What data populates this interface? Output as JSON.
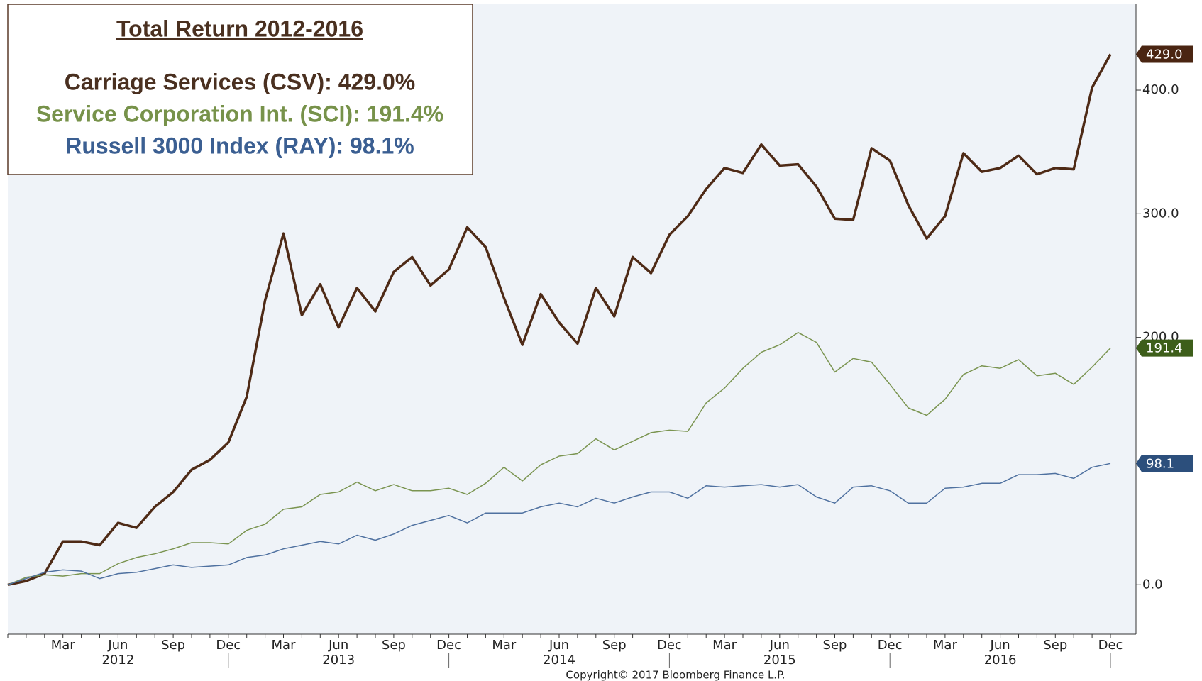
{
  "chart_data": {
    "type": "line",
    "title": "Total Return 2012-2016",
    "categories": [
      null,
      null,
      null,
      "Mar",
      null,
      null,
      "Jun",
      null,
      null,
      "Sep",
      null,
      null,
      "Dec",
      null,
      null,
      "Mar",
      null,
      null,
      "Jun",
      null,
      null,
      "Sep",
      null,
      null,
      "Dec",
      null,
      null,
      "Mar",
      null,
      null,
      "Jun",
      null,
      null,
      "Sep",
      null,
      null,
      "Dec",
      null,
      null,
      "Mar",
      null,
      null,
      "Jun",
      null,
      null,
      "Sep",
      null,
      null,
      "Dec",
      null,
      null,
      "Mar",
      null,
      null,
      "Jun",
      null,
      null,
      "Sep",
      null,
      null,
      "Dec"
    ],
    "years": [
      "2012",
      "2013",
      "2014",
      "2015",
      "2016"
    ],
    "series": [
      {
        "name": "Carriage Services (CSV): 429.0%",
        "color": "#4e2a16",
        "tag_color": "#4a2512",
        "values": [
          0,
          3,
          9,
          35,
          35,
          32,
          50,
          46,
          63,
          75,
          93,
          101,
          115,
          152,
          230,
          284,
          218,
          243,
          208,
          240,
          221,
          253,
          265,
          242,
          255,
          289,
          273,
          232,
          194,
          235,
          212,
          195,
          240,
          217,
          265,
          252,
          283,
          298,
          320,
          337,
          333,
          356,
          339,
          340,
          322,
          296,
          295,
          353,
          343,
          307,
          280,
          298,
          349,
          334,
          337,
          347,
          332,
          337,
          336,
          402,
          429
        ],
        "value_label": "429.0"
      },
      {
        "name": "Service Corporation Int. (SCI): 191.4%",
        "color": "#7a9450",
        "tag_color": "#3d5e1a",
        "values": [
          0,
          6,
          8,
          7,
          9,
          9,
          17,
          22,
          25,
          29,
          34,
          34,
          33,
          44,
          49,
          61,
          63,
          73,
          75,
          83,
          76,
          81,
          76,
          76,
          78,
          73,
          82,
          95,
          84,
          97,
          104,
          106,
          118,
          109,
          116,
          123,
          125,
          124,
          147,
          159,
          175,
          188,
          194,
          204,
          196,
          172,
          183,
          180,
          162,
          143,
          137,
          150,
          170,
          177,
          175,
          182,
          169,
          171,
          162,
          176,
          191.4
        ],
        "value_label": "191.4"
      },
      {
        "name": "Russell 3000 Index (RAY): 98.1%",
        "color": "#4f71a0",
        "tag_color": "#2c4f7c",
        "values": [
          0,
          5,
          10,
          12,
          11,
          5,
          9,
          10,
          13,
          16,
          14,
          15,
          16,
          22,
          24,
          29,
          32,
          35,
          33,
          40,
          36,
          41,
          48,
          52,
          56,
          50,
          58,
          58,
          58,
          63,
          66,
          63,
          70,
          66,
          71,
          75,
          75,
          70,
          80,
          79,
          80,
          81,
          79,
          81,
          71,
          66,
          79,
          80,
          76,
          66,
          66,
          78,
          79,
          82,
          82,
          89,
          89,
          90,
          86,
          95,
          98.1
        ],
        "value_label": "98.1"
      }
    ],
    "ylim": [
      -40,
      470
    ],
    "yticks": [
      {
        "value": 0,
        "label": "0.0"
      },
      {
        "value": 200,
        "label": "200.0"
      },
      {
        "value": 300,
        "label": "300.0"
      },
      {
        "value": 400,
        "label": "400.0"
      }
    ],
    "footnote": "Copyright© 2017 Bloomberg Finance L.P."
  }
}
